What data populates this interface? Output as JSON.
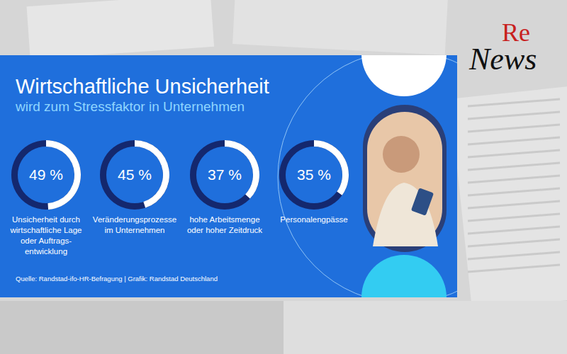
{
  "chart_data": {
    "type": "radial",
    "title": "Wirtschaftliche Unsicherheit",
    "subtitle": "wird zum Stressfaktor in Unternehmen",
    "categories": [
      "Unsicherheit durch\nwirtschaftliche Lage\noder Auftrags-\nentwicklung",
      "Veränderungsprozesse\nim Unternehmen",
      "hohe Arbeitsmenge\noder hoher Zeitdruck",
      "Personalengpässe"
    ],
    "values": [
      49,
      45,
      37,
      35
    ],
    "value_labels": [
      "49 %",
      "45 %",
      "37 %",
      "35 %"
    ],
    "color": "#ffffff",
    "ylim": [
      0,
      100
    ],
    "tick_labels": false,
    "data_labels": true,
    "source": "Quelle: Randstad-ifo-HR-Befragung | Grafik: Randstad Deutschland"
  },
  "logo": {
    "prefix": "Re",
    "name": "News"
  }
}
